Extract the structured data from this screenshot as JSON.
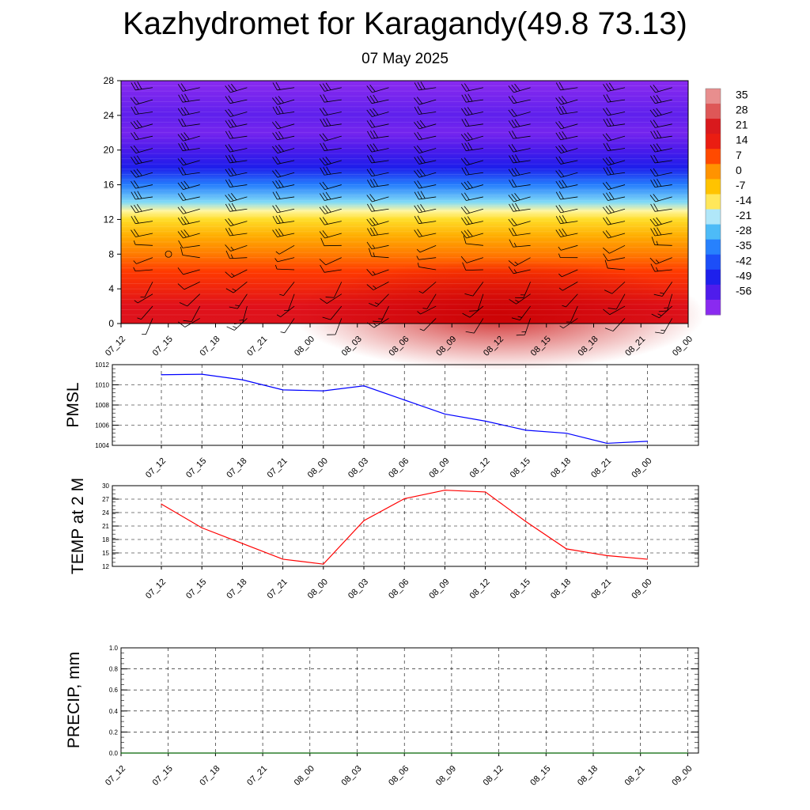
{
  "title": "Kazhydromet for Karagandy(49.8 73.13)",
  "date": "07 May 2025",
  "chart_data": [
    {
      "type": "heatmap",
      "ylim": [
        0,
        28
      ],
      "y_ticks": [
        0,
        4,
        8,
        12,
        16,
        20,
        24,
        28
      ],
      "x_ticks": [
        "07_12",
        "07_15",
        "07_18",
        "07_21",
        "08_00",
        "08_03",
        "08_06",
        "08_09",
        "08_12",
        "08_15",
        "08_18",
        "08_21",
        "09_00"
      ],
      "colorbar_labels": [
        "35",
        "28",
        "21",
        "14",
        "7",
        "0",
        "-7",
        "-14",
        "-21",
        "-28",
        "-35",
        "-42",
        "-49",
        "-56"
      ],
      "colorbar_levels": [
        35,
        28,
        21,
        14,
        7,
        0,
        -7,
        -14,
        -21,
        -28,
        -35,
        -42,
        -49,
        -56
      ],
      "colormap": [
        {
          "v": 35,
          "c": "#e88e8e"
        },
        {
          "v": 28,
          "c": "#d42020"
        },
        {
          "v": 20,
          "c": "#e0101a"
        },
        {
          "v": 12,
          "c": "#ff3a00"
        },
        {
          "v": 4,
          "c": "#ff9000"
        },
        {
          "v": -6,
          "c": "#ffd400"
        },
        {
          "v": -14,
          "c": "#fff6a0"
        },
        {
          "v": -15,
          "c": "#dff3fb"
        },
        {
          "v": -22,
          "c": "#5ad0f5"
        },
        {
          "v": -34,
          "c": "#1a6cff"
        },
        {
          "v": -48,
          "c": "#1f10e8"
        },
        {
          "v": -58,
          "c": "#8a2af0"
        }
      ],
      "temperature_profile": [
        {
          "level": 0,
          "t": 22
        },
        {
          "level": 2,
          "t": 20
        },
        {
          "level": 4,
          "t": 16
        },
        {
          "level": 6,
          "t": 12
        },
        {
          "level": 8,
          "t": 6
        },
        {
          "level": 10,
          "t": 0
        },
        {
          "level": 12,
          "t": -8
        },
        {
          "level": 13,
          "t": -14
        },
        {
          "level": 14,
          "t": -20
        },
        {
          "level": 16,
          "t": -32
        },
        {
          "level": 18,
          "t": -46
        },
        {
          "level": 20,
          "t": -52
        },
        {
          "level": 22,
          "t": -56
        },
        {
          "level": 24,
          "t": -54
        },
        {
          "level": 26,
          "t": -56
        },
        {
          "level": 28,
          "t": -58
        }
      ],
      "warm_anomaly_center": "08_12"
    },
    {
      "type": "line",
      "ylabel": "PMSL",
      "ylim": [
        1004,
        1012
      ],
      "y_ticks": [
        1004,
        1006,
        1008,
        1010,
        1012
      ],
      "x": [
        "07_12",
        "07_15",
        "07_18",
        "07_21",
        "08_00",
        "08_03",
        "08_06",
        "08_09",
        "08_12",
        "08_15",
        "08_18",
        "08_21",
        "09_00"
      ],
      "series": [
        {
          "color": "#0000ff",
          "values": [
            1011.0,
            1011.05,
            1010.5,
            1009.5,
            1009.4,
            1009.9,
            1008.5,
            1007.1,
            1006.4,
            1005.5,
            1005.2,
            1004.2,
            1004.4
          ]
        }
      ],
      "grid": true
    },
    {
      "type": "line",
      "ylabel": "TEMP at 2 M",
      "ylim": [
        12,
        30
      ],
      "y_ticks": [
        12,
        15,
        18,
        21,
        24,
        27,
        30
      ],
      "x": [
        "07_12",
        "07_15",
        "07_18",
        "07_21",
        "08_00",
        "08_03",
        "08_06",
        "08_09",
        "08_12",
        "08_15",
        "08_18",
        "08_21",
        "09_00"
      ],
      "series": [
        {
          "color": "#ff0000",
          "values": [
            25.9,
            20.6,
            17.1,
            13.6,
            12.5,
            22.2,
            27.1,
            29.0,
            28.6,
            22.0,
            15.9,
            14.4,
            13.6
          ]
        }
      ],
      "grid": true
    },
    {
      "type": "line",
      "ylabel": "PRECIP, mm",
      "ylim": [
        0,
        1.0
      ],
      "y_ticks": [
        "0.0",
        "0.2",
        "0.4",
        "0.6",
        "0.8",
        "1.0"
      ],
      "x": [
        "07_12",
        "07_15",
        "07_18",
        "07_21",
        "08_00",
        "08_03",
        "08_06",
        "08_09",
        "08_12",
        "08_15",
        "08_18",
        "08_21",
        "09_00"
      ],
      "series": [
        {
          "color": "#006400",
          "values": [
            0,
            0,
            0,
            0,
            0,
            0,
            0,
            0,
            0,
            0,
            0,
            0,
            0
          ]
        }
      ],
      "grid": true
    }
  ]
}
